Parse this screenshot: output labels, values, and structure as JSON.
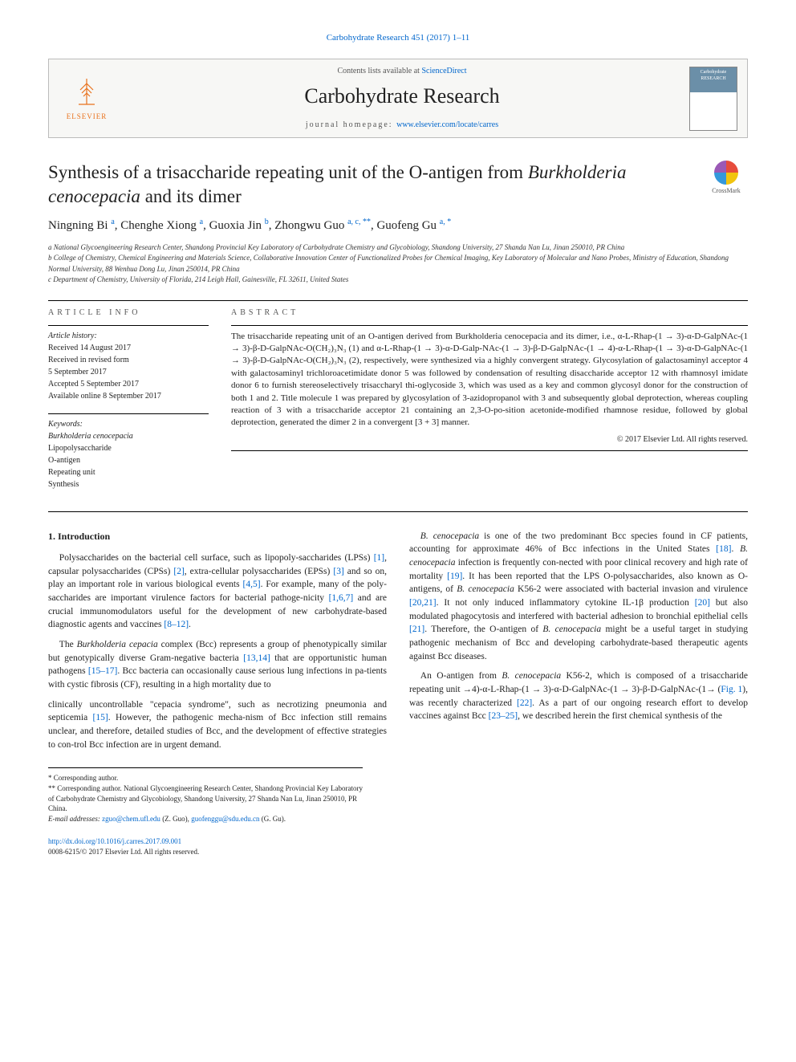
{
  "header_ref": "Carbohydrate Research 451 (2017) 1–11",
  "banner": {
    "contents_line_pre": "Contents lists available at ",
    "contents_link": "ScienceDirect",
    "journal_name": "Carbohydrate Research",
    "homepage_label": "journal homepage: ",
    "homepage_url_text": "www.elsevier.com/locate/carres",
    "elsevier_label": "ELSEVIER",
    "cover_label": "Carbohydrate RESEARCH"
  },
  "crossmark_label": "CrossMark",
  "title_part1": "Synthesis of a trisaccharide repeating unit of the O-antigen from ",
  "title_italic": "Burkholderia cenocepacia",
  "title_part2": " and its dimer",
  "authors_html": "Ningning Bi <sup>a</sup>, Chenghe Xiong <sup>a</sup>, Guoxia Jin <sup>b</sup>, Zhongwu Guo <sup>a, c, **</sup>, Guofeng Gu <sup>a, *</sup>",
  "affiliations": [
    "a National Glycoengineering Research Center, Shandong Provincial Key Laboratory of Carbohydrate Chemistry and Glycobiology, Shandong University, 27 Shanda Nan Lu, Jinan 250010, PR China",
    "b College of Chemistry, Chemical Engineering and Materials Science, Collaborative Innovation Center of Functionalized Probes for Chemical Imaging, Key Laboratory of Molecular and Nano Probes, Ministry of Education, Shandong Normal University, 88 Wenhua Dong Lu, Jinan 250014, PR China",
    "c Department of Chemistry, University of Florida, 214 Leigh Hall, Gainesville, FL 32611, United States"
  ],
  "article_info_head": "ARTICLE INFO",
  "abstract_head": "ABSTRACT",
  "history_label": "Article history:",
  "history": [
    "Received 14 August 2017",
    "Received in revised form",
    "5 September 2017",
    "Accepted 5 September 2017",
    "Available online 8 September 2017"
  ],
  "keywords_label": "Keywords:",
  "keywords": [
    "Burkholderia cenocepacia",
    "Lipopolysaccharide",
    "O-antigen",
    "Repeating unit",
    "Synthesis"
  ],
  "abstract_text": "The trisaccharide repeating unit of an O-antigen derived from Burkholderia cenocepacia and its dimer, i.e., α-L-Rhap-(1 → 3)-α-D-GalpNAc-(1 → 3)-β-D-GalpNAc-O(CH₂)₃N₃ (1) and α-L-Rhap-(1 → 3)-α-D-Galp-NAc-(1 → 3)-β-D-GalpNAc-(1 → 4)-α-L-Rhap-(1 → 3)-α-D-GalpNAc-(1 → 3)-β-D-GalpNAc-O(CH₂)₃N₃ (2), respectively, were synthesized via a highly convergent strategy. Glycosylation of galactosaminyl acceptor 4 with galactosaminyl trichloroacetimidate donor 5 was followed by condensation of resulting disaccharide acceptor 12 with rhamnosyl imidate donor 6 to furnish stereoselectively trisaccharyl thi-oglycoside 3, which was used as a key and common glycosyl donor for the construction of both 1 and 2. Title molecule 1 was prepared by glycosylation of 3-azidopropanol with 3 and subsequently global deprotection, whereas coupling reaction of 3 with a trisaccharide acceptor 21 containing an 2,3-O-po-sition acetonide-modified rhamnose residue, followed by global deprotection, generated the dimer 2 in a convergent [3 + 3] manner.",
  "abstract_copyright": "© 2017 Elsevier Ltd. All rights reserved.",
  "section1_head": "1. Introduction",
  "para1": "Polysaccharides on the bacterial cell surface, such as lipopoly-saccharides (LPSs) [1], capsular polysaccharides (CPSs) [2], extra-cellular polysaccharides (EPSs) [3] and so on, play an important role in various biological events [4,5]. For example, many of the poly-saccharides are important virulence factors for bacterial pathoge-nicity [1,6,7] and are crucial immunomodulators useful for the development of new carbohydrate-based diagnostic agents and vaccines [8–12].",
  "para2": "The Burkholderia cepacia complex (Bcc) represents a group of phenotypically similar but genotypically diverse Gram-negative bacteria [13,14] that are opportunistic human pathogens [15–17]. Bcc bacteria can occasionally cause serious lung infections in pa-tients with cystic fibrosis (CF), resulting in a high mortality due to",
  "para3": "clinically uncontrollable \"cepacia syndrome\", such as necrotizing pneumonia and septicemia [15]. However, the pathogenic mecha-nism of Bcc infection still remains unclear, and therefore, detailed studies of Bcc, and the development of effective strategies to con-trol Bcc infection are in urgent demand.",
  "para4": "B. cenocepacia is one of the two predominant Bcc species found in CF patients, accounting for approximate 46% of Bcc infections in the United States [18]. B. cenocepacia infection is frequently con-nected with poor clinical recovery and high rate of mortality [19]. It has been reported that the LPS O-polysaccharides, also known as O-antigens, of B. cenocepacia K56-2 were associated with bacterial invasion and virulence [20,21]. It not only induced inflammatory cytokine IL-1β production [20] but also modulated phagocytosis and interfered with bacterial adhesion to bronchial epithelial cells [21]. Therefore, the O-antigen of B. cenocepacia might be a useful target in studying pathogenic mechanism of Bcc and developing carbohydrate-based therapeutic agents against Bcc diseases.",
  "para5": "An O-antigen from B. cenocepacia K56-2, which is composed of a trisaccharide repeating unit →4)-α-L-Rhap-(1 → 3)-α-D-GalpNAc-(1 → 3)-β-D-GalpNAc-(1→ (Fig. 1), was recently characterized [22]. As a part of our ongoing research effort to develop vaccines against Bcc [23–25], we described herein the first chemical synthesis of the",
  "footnote_corr1": "* Corresponding author.",
  "footnote_corr2": "** Corresponding author. National Glycoengineering Research Center, Shandong Provincial Key Laboratory of Carbohydrate Chemistry and Glycobiology, Shandong University, 27 Shanda Nan Lu, Jinan 250010, PR China.",
  "footnote_email_label": "E-mail addresses: ",
  "footnote_email1": "zguo@chem.ufl.edu",
  "footnote_email1_who": " (Z. Guo), ",
  "footnote_email2": "guofenggu@sdu.edu.cn",
  "footnote_email2_who": " (G. Gu).",
  "doi": "http://dx.doi.org/10.1016/j.carres.2017.09.001",
  "issn_line": "0008-6215/© 2017 Elsevier Ltd. All rights reserved."
}
